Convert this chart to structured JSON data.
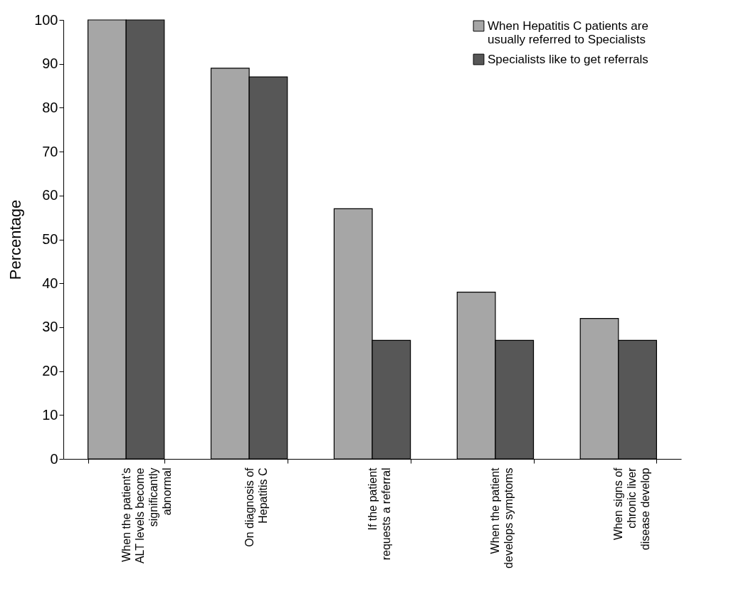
{
  "chart_data": {
    "type": "bar",
    "ylabel": "Percentage",
    "categories": [
      "When the patient’s ALT levels become significantly abnormal",
      "On diagnosis of Hepatitis C",
      "If the patient requests a referral",
      "When the patient develops symptoms",
      "When signs of chronic liver disease develop"
    ],
    "series": [
      {
        "name": "When Hepatitis C patients are usually referred to Specialists",
        "color": "#a6a6a6",
        "values": [
          100,
          89,
          57,
          38,
          32
        ]
      },
      {
        "name": "Specialists like to get referrals",
        "color": "#575757",
        "values": [
          100,
          87,
          27,
          27,
          27
        ]
      }
    ],
    "ylim": [
      0,
      100
    ],
    "yticks": [
      0,
      10,
      20,
      30,
      40,
      50,
      60,
      70,
      80,
      90,
      100
    ],
    "grid": false,
    "legend": "top right"
  }
}
